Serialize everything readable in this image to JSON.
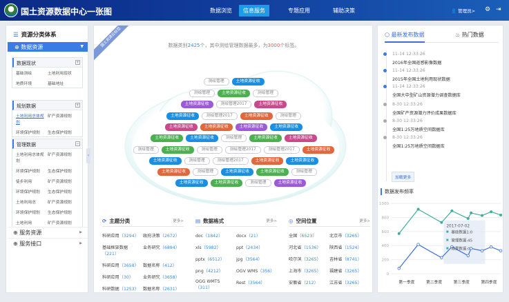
{
  "header": {
    "title": "国土资源数据中心一张图",
    "nav": [
      "数据浏览",
      "信息服务",
      "专题应用",
      "辅助决策"
    ],
    "active_nav": 1,
    "user": "管理员>",
    "icons": [
      "user-icon",
      "gear-icon",
      "logout-icon"
    ]
  },
  "sidebar": {
    "title": "资源分类体系",
    "selected": "数据资源",
    "groups": [
      {
        "title": "数据现状",
        "toggle": "+",
        "items": [
          "基础测绘",
          "土地利用现状",
          "地质环境",
          "基础地址"
        ]
      },
      {
        "title": "规划数据",
        "toggle": "+",
        "items": [
          "土地利用总体规划",
          "矿产资源规划",
          "环境保护规划",
          "生态保护规划"
        ],
        "selected": 0
      },
      {
        "title": "管理数据",
        "toggle": "−",
        "items": [
          "土地利用总体规划",
          "矿产资源规划",
          "环境保护规划",
          "生态保护规划",
          "徒步利用",
          "矿产资源规划",
          "环境保护规划",
          "生态保护规划",
          "土地利用总",
          "矿产资源规划",
          "环境保护规划",
          "生态保护规划",
          "土地利用",
          "矿产资源规划"
        ]
      }
    ],
    "menus": [
      "服务资源",
      "服务接口"
    ]
  },
  "center": {
    "ribbon": "国土资源云标签",
    "summary": {
      "a": "数据类别",
      "count": "2425",
      "b": "个，其中测绘管理数据最多，为",
      "max": "3000",
      "c": "个标签。"
    },
    "tag_colors": {
      "blue": "#1a8ee0",
      "green": "#4caf50",
      "purple": "#9c5ad8",
      "pink": "#c94a8c",
      "orange": "#e0683c"
    },
    "tag_rows": [
      [
        [
          "测绘管理",
          "w"
        ],
        [
          "土地资源征收",
          "blue"
        ]
      ],
      [
        [
          "测绘管理",
          "w"
        ],
        [
          "土地资源征收",
          "green"
        ],
        [
          "测绘管理",
          "w"
        ]
      ],
      [
        [
          "土地资源征收",
          "purple"
        ],
        [
          "测绘管理2017",
          "w"
        ],
        [
          "土地资源征收",
          "pink"
        ]
      ],
      [
        [
          "土地资源征收",
          "blue"
        ],
        [
          "测绘管理2017",
          "w"
        ],
        [
          "土地资源征收",
          "orange"
        ],
        [
          "测绘管理",
          "w"
        ]
      ],
      [
        [
          "土地资源征收",
          "pink"
        ],
        [
          "土地资源征收",
          "orange"
        ],
        [
          "土地资源征收",
          "purple"
        ],
        [
          "土地资源征收",
          "blue"
        ]
      ],
      [
        [
          "土地资源征收",
          "green"
        ],
        [
          "土地资源征收",
          "blue"
        ],
        [
          "测绘管理",
          "w"
        ],
        [
          "土地资源征收",
          "green"
        ],
        [
          "土地资源征收",
          "pink"
        ]
      ],
      [
        [
          "测绘管理",
          "w"
        ],
        [
          "土地资源征收",
          "green"
        ],
        [
          "测绘管理",
          "w"
        ],
        [
          "测绘管理2017",
          "w"
        ],
        [
          "测绘管理2017",
          "w"
        ],
        [
          "土地资源征收",
          "orange"
        ]
      ],
      [
        [
          "土地资源征收",
          "blue"
        ],
        [
          "测绘管理",
          "w"
        ],
        [
          "测绘管理2017",
          "w"
        ],
        [
          "土地资源征收",
          "orange"
        ],
        [
          "土地资源征收",
          "blue"
        ]
      ],
      [
        [
          "土地资源征收",
          "orange"
        ],
        [
          "测绘管理",
          "w"
        ],
        [
          "土地资源征收",
          "blue"
        ],
        [
          "土地资源征收",
          "green"
        ],
        [
          "测绘管理",
          "w"
        ]
      ],
      [
        [
          "土地资源征收",
          "blue"
        ],
        [
          "土地资源征收",
          "green"
        ],
        [
          "测绘管理",
          "w"
        ],
        [
          "土地资源征收",
          "purple"
        ]
      ]
    ],
    "sections": [
      {
        "title": "主题分类",
        "icon": "topic-icon",
        "more": "更多>",
        "items": [
          [
            "科研应用",
            "3294"
          ],
          [
            "政府决策",
            "2672"
          ],
          [
            "基础框架数据",
            "221"
          ],
          [
            "业务研究",
            "6894"
          ],
          [
            "科研应用",
            "3658"
          ],
          [
            "数据名称",
            "412"
          ],
          [
            "科研应用",
            "30"
          ],
          [
            "业务研究",
            "3658"
          ],
          [
            "科研数据",
            "1253"
          ],
          [
            "数据名称",
            "2631"
          ]
        ]
      },
      {
        "title": "数据格式",
        "icon": "file-icon",
        "more": "更多>",
        "items": [
          [
            "doc",
            "1842"
          ],
          [
            "docx",
            "21"
          ],
          [
            "xls",
            "5982"
          ],
          [
            "ppt",
            "2434"
          ],
          [
            "pptx",
            "6512"
          ],
          [
            "jpg",
            "3564"
          ],
          [
            "png",
            "4212"
          ],
          [
            "OGV WMS",
            "356"
          ],
          [
            "OGG WMTS",
            "311"
          ],
          [
            "Rest",
            "3564"
          ]
        ]
      },
      {
        "title": "空间位置",
        "icon": "location-icon",
        "more": "更多>",
        "items": [
          [
            "全国",
            "6523"
          ],
          [
            "北京市",
            "3265"
          ],
          [
            "河北省",
            "1536"
          ],
          [
            "陕西省",
            "1524"
          ],
          [
            "哈尔滨",
            "3265"
          ],
          [
            "吉林省",
            "8741"
          ],
          [
            "上海市",
            "3265"
          ],
          [
            "福建省",
            "3265"
          ],
          [
            "安徽省",
            "212"
          ],
          [
            "江苏省",
            "3265"
          ]
        ]
      }
    ]
  },
  "right": {
    "tabs": [
      "最新发布数据",
      "热门数据"
    ],
    "timeline": [
      {
        "time": "11-14  12:33:26",
        "name": "2016年全国遥感影像数据",
        "recent": true
      },
      {
        "time": "11-14  12:33:26",
        "name": "2015年全国土地利用现状数据",
        "recent": true
      },
      {
        "time": "11-14  12:33:26",
        "name": "全国大中型矿山资源潜力调查数据库",
        "recent": true
      },
      {
        "time": "8-30  12:33:26",
        "name": "全国矿产资源潜力评价成果数据库",
        "recent": false
      },
      {
        "time": "8-30  12:33:26",
        "name": "全国1:25万地质空间数据库",
        "recent": false
      },
      {
        "time": "8-30  12:33:26",
        "name": "全国1:25万地质空间数据库",
        "recent": false
      }
    ],
    "load_more": "加载更多",
    "chart_title": "数据发布频率"
  },
  "chart_data": {
    "type": "line",
    "title": "数据发布频率",
    "categories": [
      "第一季度",
      "第二季度",
      "第三季度",
      "第四季度"
    ],
    "ylim": [
      0,
      1000
    ],
    "yticks": [
      0,
      200,
      400,
      600,
      800,
      1000
    ],
    "grid": true,
    "x": [
      0.72,
      1.42,
      2.27,
      2.65,
      3.24,
      3.35,
      3.75,
      4.08,
      4.43
    ],
    "series": [
      {
        "color": "#3fae9a",
        "values": [
          571,
          917,
          729,
          894,
          785,
          865,
          828,
          881,
          835
        ]
      },
      {
        "color": "#3b6fe0",
        "values": [
          76,
          416,
          228,
          383,
          257,
          360,
          327,
          380,
          327
        ]
      }
    ],
    "tooltip": {
      "title": "2017-07-02",
      "lines": [
        "基础数据1:0",
        "管理数据:45",
        "成果数据:0"
      ]
    }
  }
}
